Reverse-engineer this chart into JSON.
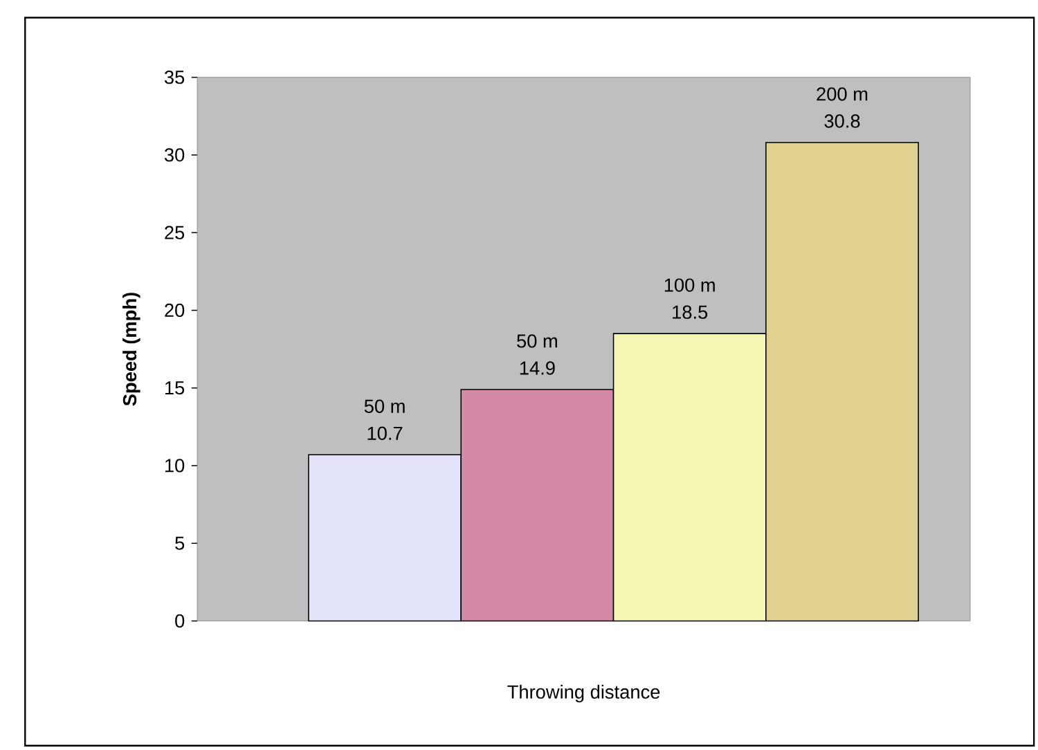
{
  "chart_data": {
    "type": "bar",
    "xlabel": "Throwing distance",
    "ylabel": "Speed (mph)",
    "categories": [
      "50 m",
      "50 m",
      "100 m",
      "200 m"
    ],
    "values": [
      10.7,
      14.9,
      18.5,
      30.8
    ],
    "colors": [
      "#e2e2fa",
      "#d48aa6",
      "#f6f6b4",
      "#e0d28e"
    ],
    "ylim": [
      0,
      35
    ],
    "yticks": [
      0,
      5,
      10,
      15,
      20,
      25,
      30,
      35
    ],
    "tick_labels": "y",
    "data_labels": true
  }
}
